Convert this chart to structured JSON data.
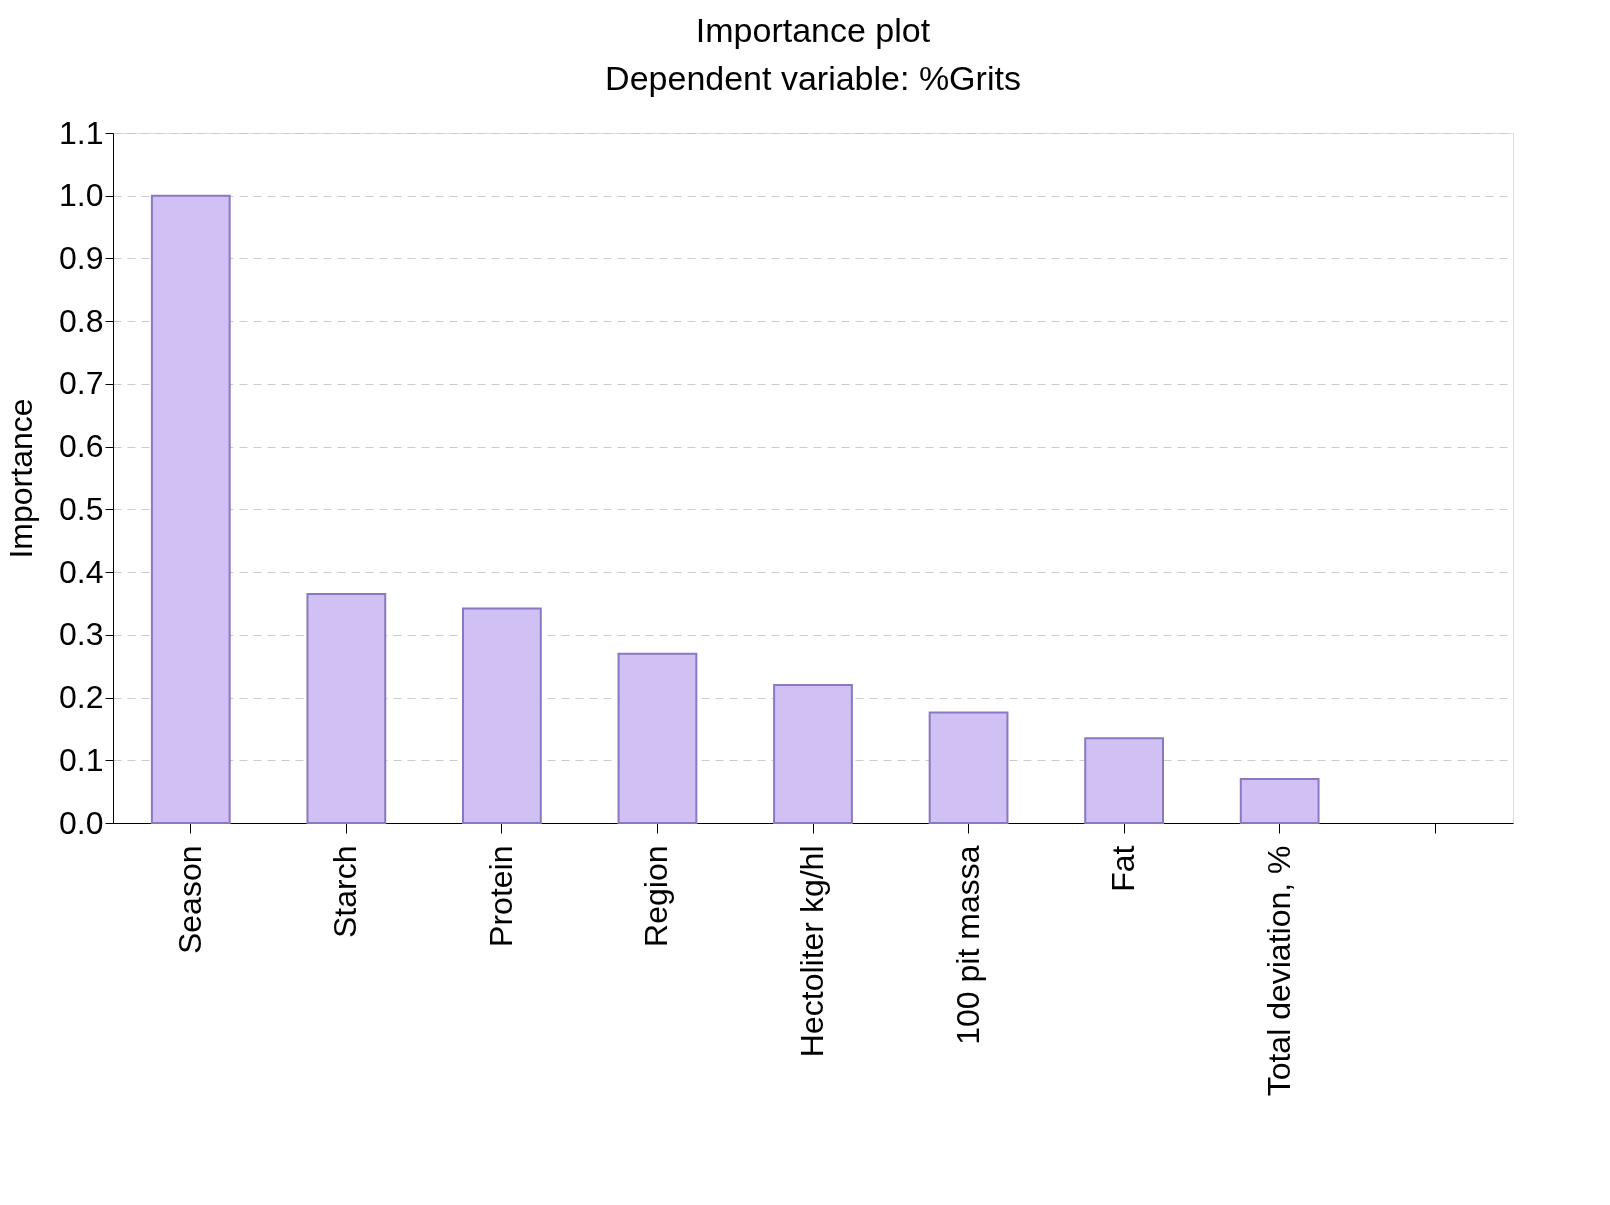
{
  "chart_data": {
    "type": "bar",
    "title": "Importance plot",
    "subtitle": "Dependent variable: %Grits",
    "ylabel": "Importance",
    "categories": [
      "Season",
      "Starch",
      "Protein",
      "Region",
      "Hectoliter kg/hl",
      "100 pit massa",
      "Fat",
      "Total deviation, %",
      null
    ],
    "values": [
      1.0,
      0.365,
      0.342,
      0.27,
      0.22,
      0.176,
      0.135,
      0.07,
      null
    ],
    "color": "#d0c0f4",
    "ylim": [
      0,
      1.1
    ],
    "yticks": [
      {
        "value": 0,
        "label": "0.0"
      },
      {
        "value": 0.1,
        "label": "0.1"
      },
      {
        "value": 0.2,
        "label": "0.2"
      },
      {
        "value": 0.3,
        "label": "0.3"
      },
      {
        "value": 0.4,
        "label": "0.4"
      },
      {
        "value": 0.5,
        "label": "0.5"
      },
      {
        "value": 0.6,
        "label": "0.6"
      },
      {
        "value": 0.7,
        "label": "0.7"
      },
      {
        "value": 0.8,
        "label": "0.8"
      },
      {
        "value": 0.9,
        "label": "0.9"
      },
      {
        "value": 1.0,
        "label": "1.0"
      },
      {
        "value": 1.1,
        "label": "1.1"
      }
    ],
    "grid": "y"
  }
}
